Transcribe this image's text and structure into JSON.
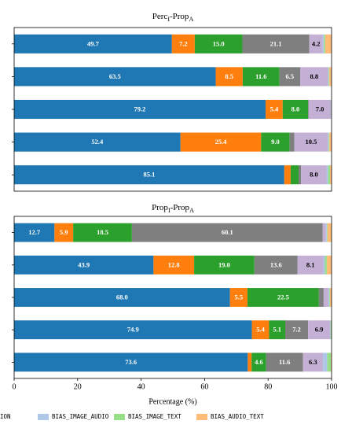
{
  "chart_data": [
    {
      "type": "stacked-barh",
      "title_parts": [
        "Perc",
        "I",
        "-Prop",
        "A"
      ],
      "categories": [
        null,
        null,
        null,
        null,
        null
      ],
      "xlim": [
        0,
        100
      ],
      "series": [
        {
          "color": "#1f77b4",
          "label_color": "#ffffff",
          "values": [
            49.7,
            63.5,
            79.2,
            52.4,
            85.1
          ],
          "value_labels": [
            "49.7",
            "63.5",
            "79.2",
            "52.4",
            "85.1"
          ]
        },
        {
          "color": "#ff7f0e",
          "label_color": "#ffffff",
          "values": [
            7.2,
            8.5,
            5.4,
            25.4,
            2.0
          ],
          "value_labels": [
            "7.2",
            "8.5",
            "5.4",
            "25.4",
            null
          ]
        },
        {
          "color": "#2ca02c",
          "label_color": "#ffffff",
          "values": [
            15.0,
            11.6,
            8.0,
            9.0,
            2.5
          ],
          "value_labels": [
            "15.0",
            "11.6",
            "8.0",
            "9.0",
            null
          ]
        },
        {
          "color": "#7f7f7f",
          "label_color": "#ffffff",
          "values": [
            21.1,
            6.5,
            0.2,
            1.5,
            0.8
          ],
          "value_labels": [
            "21.1",
            "6.5",
            null,
            null,
            null
          ]
        },
        {
          "color": "#c5b0d5",
          "label_color": "#000000",
          "values": [
            4.2,
            8.8,
            7.0,
            10.5,
            8.0
          ],
          "value_labels": [
            "4.2",
            "8.8",
            "7.0",
            "10.5",
            "8.0"
          ]
        },
        {
          "color": "#aec7e8",
          "label_color": "#000000",
          "values": [
            0.4,
            0.2,
            0.1,
            0.3,
            0.5
          ],
          "value_labels": [
            null,
            null,
            null,
            null,
            null
          ]
        },
        {
          "color": "#98df8a",
          "label_color": "#000000",
          "values": [
            0.4,
            0.2,
            0.1,
            0.2,
            0.6
          ],
          "value_labels": [
            null,
            null,
            null,
            null,
            null
          ]
        },
        {
          "color": "#ffbb78",
          "label_color": "#000000",
          "values": [
            2.0,
            0.7,
            0.0,
            0.7,
            0.5
          ],
          "value_labels": [
            null,
            null,
            null,
            null,
            null
          ]
        }
      ]
    },
    {
      "type": "stacked-barh",
      "title_parts": [
        "Prop",
        "I",
        "-Prop",
        "A"
      ],
      "categories": [
        null,
        null,
        null,
        null,
        null
      ],
      "xlim": [
        0,
        100
      ],
      "xticks": [
        0,
        20,
        40,
        60,
        80,
        100
      ],
      "xlabel": "Percentage (%)",
      "series": [
        {
          "color": "#1f77b4",
          "label_color": "#ffffff",
          "values": [
            12.7,
            43.9,
            68.0,
            74.9,
            73.6
          ],
          "value_labels": [
            "12.7",
            "43.9",
            "68.0",
            "74.9",
            "73.6"
          ]
        },
        {
          "color": "#ff7f0e",
          "label_color": "#ffffff",
          "values": [
            5.9,
            12.8,
            5.5,
            5.4,
            1.2
          ],
          "value_labels": [
            "5.9",
            "12.8",
            "5.5",
            "5.4",
            null
          ]
        },
        {
          "color": "#2ca02c",
          "label_color": "#ffffff",
          "values": [
            18.5,
            19.0,
            22.5,
            5.1,
            4.6
          ],
          "value_labels": [
            "18.5",
            "19.0",
            "22.5",
            "5.1",
            "4.6"
          ]
        },
        {
          "color": "#7f7f7f",
          "label_color": "#ffffff",
          "values": [
            60.1,
            13.6,
            1.5,
            7.2,
            11.6
          ],
          "value_labels": [
            "60.1",
            "13.6",
            null,
            "7.2",
            "11.6"
          ]
        },
        {
          "name": "ION",
          "color": "#c5b0d5",
          "label_color": "#000000",
          "values": [
            1.0,
            8.1,
            1.5,
            6.9,
            6.3
          ],
          "value_labels": [
            null,
            "8.1",
            null,
            "6.9",
            "6.3"
          ]
        },
        {
          "name": "BIAS_IMAGE_AUDIO",
          "color": "#aec7e8",
          "label_color": "#000000",
          "values": [
            0.3,
            0.5,
            0.3,
            0.2,
            1.3
          ],
          "value_labels": [
            null,
            null,
            null,
            null,
            null
          ]
        },
        {
          "name": "BIAS_IMAGE_TEXT",
          "color": "#98df8a",
          "label_color": "#000000",
          "values": [
            0.2,
            0.6,
            0.2,
            0.2,
            1.2
          ],
          "value_labels": [
            null,
            null,
            null,
            null,
            null
          ]
        },
        {
          "name": "BIAS_AUDIO_TEXT",
          "color": "#ffbb78",
          "label_color": "#000000",
          "values": [
            1.3,
            1.5,
            0.5,
            0.1,
            0.2
          ],
          "value_labels": [
            null,
            null,
            null,
            null,
            null
          ]
        }
      ]
    }
  ]
}
